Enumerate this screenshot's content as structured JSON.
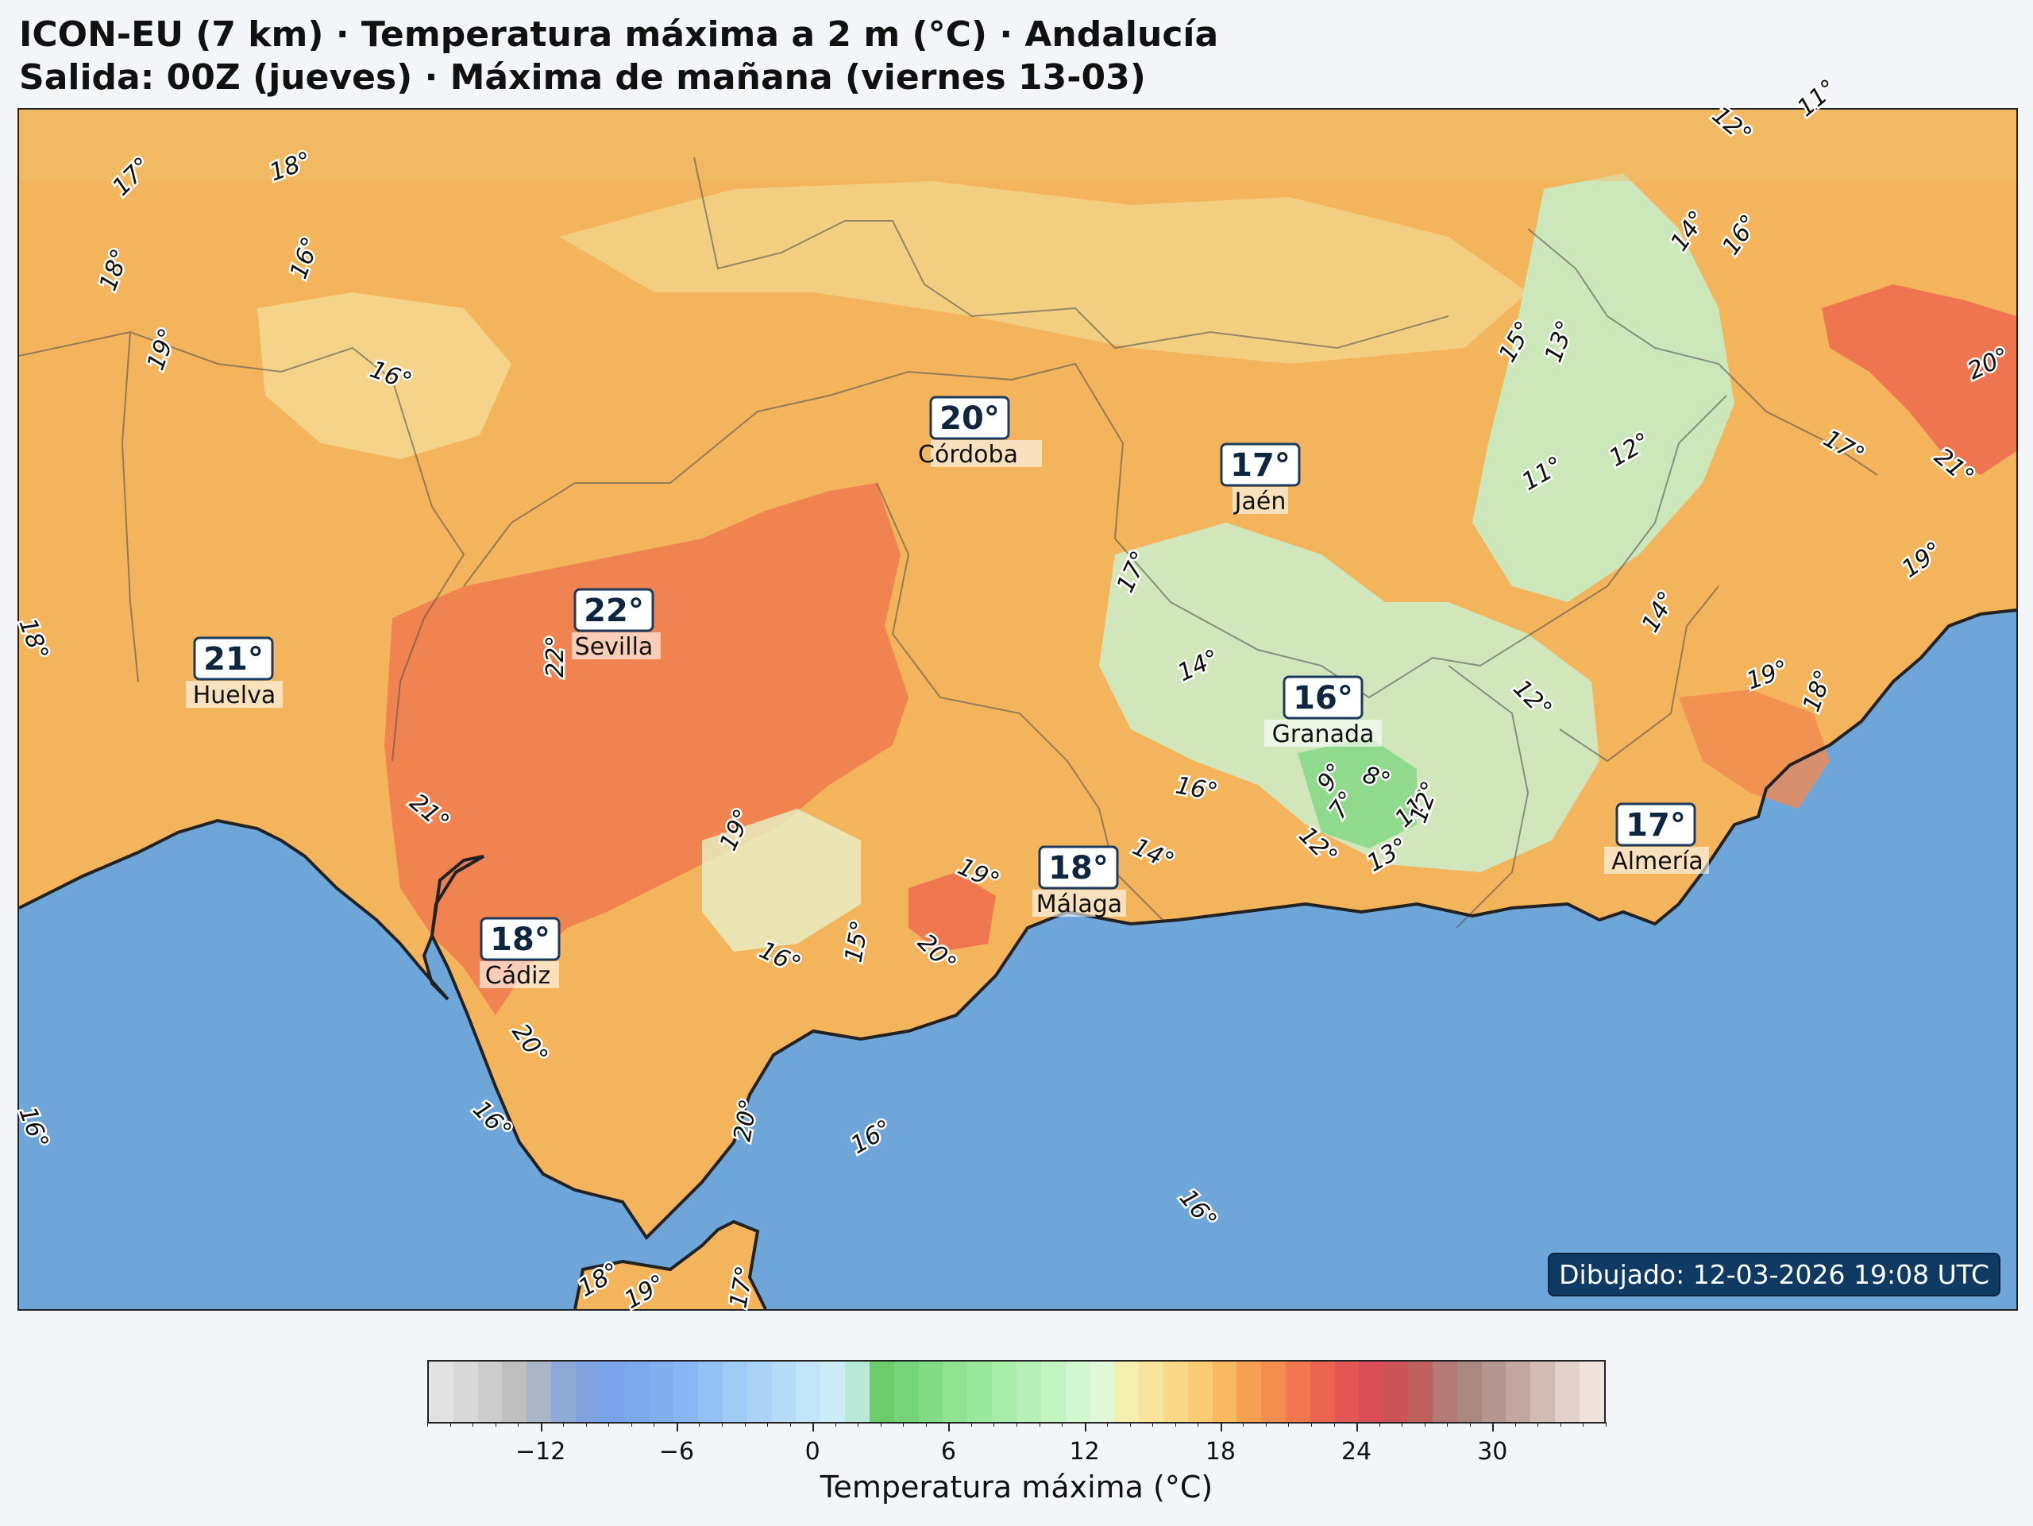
{
  "title": "ICON-EU (7 km) · Temperatura máxima a 2 m (°C) · Andalucía",
  "subtitle": "Salida: 00Z (jueves) · Máxima de mañana (viernes 13-03)",
  "drawn_label": "Dibujado: 12-03-2026 19:08 UTC",
  "cities": [
    {
      "name": "Córdoba",
      "value": "20°"
    },
    {
      "name": "Jaén",
      "value": "17°"
    },
    {
      "name": "Sevilla",
      "value": "22°"
    },
    {
      "name": "Huelva",
      "value": "21°"
    },
    {
      "name": "Granada",
      "value": "16°"
    },
    {
      "name": "Málaga",
      "value": "18°"
    },
    {
      "name": "Almería",
      "value": "17°"
    },
    {
      "name": "Cádiz",
      "value": "18°"
    }
  ],
  "isolines": [
    "17°",
    "18°",
    "18°",
    "16°",
    "19°",
    "16°",
    "18°",
    "22°",
    "21°",
    "19°",
    "16°",
    "15°",
    "20°",
    "19°",
    "20°",
    "20°",
    "16°",
    "16°",
    "16°",
    "17°",
    "14°",
    "16°",
    "14°",
    "12°",
    "9°",
    "8°",
    "7°",
    "12°",
    "13°",
    "11°",
    "12°",
    "11°",
    "12°",
    "13°",
    "15°",
    "14°",
    "16°",
    "11°",
    "12°",
    "14°",
    "17°",
    "21°",
    "19°",
    "19°",
    "18°",
    "20°",
    "18°",
    "19°",
    "17°",
    "16°"
  ],
  "colorbar": {
    "label": "Temperatura máxima (°C)",
    "ticks": [
      "−12",
      "−6",
      "0",
      "6",
      "12",
      "18",
      "24",
      "30"
    ],
    "colors": [
      "#e2e2e2",
      "#d8d8d8",
      "#cdcdcd",
      "#bfbfbf",
      "#a9b5c8",
      "#8fa9d6",
      "#7fa2e0",
      "#79a3ea",
      "#7aa9ee",
      "#80b0f0",
      "#88b8f3",
      "#92c2f5",
      "#9ecbf6",
      "#aad3f7",
      "#b6dbf8",
      "#c2e3f8",
      "#cdebf6",
      "#b7e8d8",
      "#6ccc6c",
      "#76d478",
      "#82dc84",
      "#8ee290",
      "#9ae89c",
      "#a8ecaa",
      "#b6f0b6",
      "#c4f3c2",
      "#d2f6ce",
      "#e0f8d8",
      "#f5efb0",
      "#f7e49c",
      "#f8d888",
      "#f9cb74",
      "#f8b860",
      "#f7a052",
      "#f58c50",
      "#f2774e",
      "#ec6450",
      "#e45654",
      "#d94e58",
      "#cc5458",
      "#bf6060",
      "#b57a74",
      "#a88880",
      "#b49690",
      "#c2a6a2",
      "#d2bab4",
      "#e2d0ca",
      "#efe2dc"
    ],
    "vmin": -17,
    "vmax": 35
  }
}
